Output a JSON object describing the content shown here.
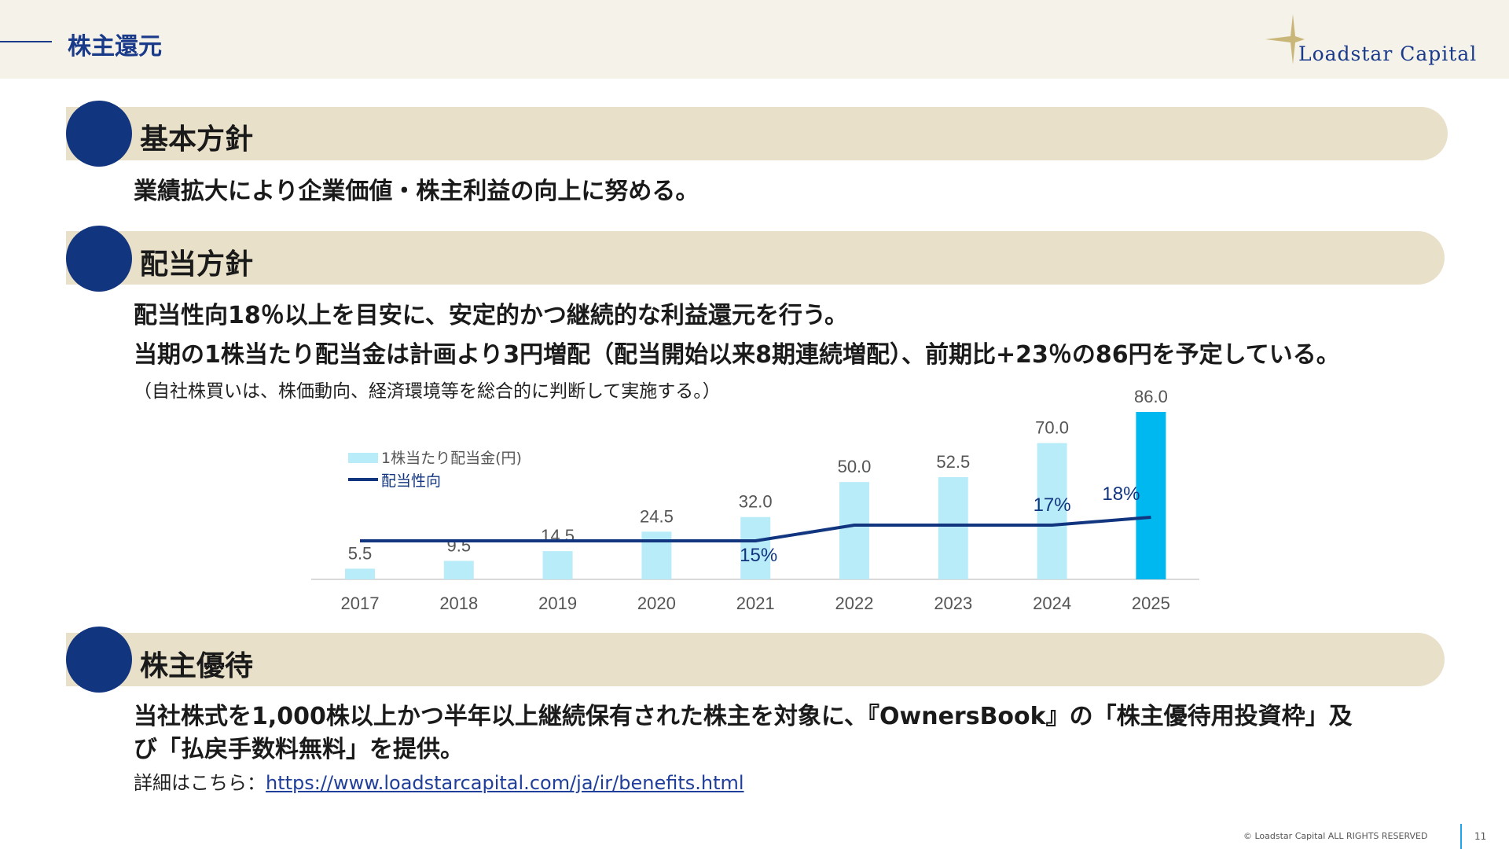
{
  "header": {
    "title": "株主還元",
    "logo_text": "Loadstar Capital"
  },
  "sections": {
    "basic": {
      "title": "基本方針",
      "line1": "業績拡大により企業価値・株主利益の向上に努める。"
    },
    "dividend": {
      "title": "配当方針",
      "line1": "配当性向18％以上を目安に、安定的かつ継続的な利益還元を行う。",
      "line2": "当期の1株当たり配当金は計画より3円増配（配当開始以来8期連続増配）、前期比+23％の86円を予定している。",
      "note": "（自社株買いは、株価動向、経済環境等を総合的に判断して実施する。）"
    },
    "benefits": {
      "title": "株主優待",
      "line1": "当社株式を1,000株以上かつ半年以上継続保有された株主を対象に、『OwnersBook』の「株主優待用投資枠」及",
      "line2": "び「払戻手数料無料」を提供。",
      "link_prefix": "詳細はこちら：",
      "link_text": "https://www.loadstarcapital.com/ja/ir/benefits.html"
    }
  },
  "chart_data": {
    "type": "bar",
    "categories": [
      "2017",
      "2018",
      "2019",
      "2020",
      "2021",
      "2022",
      "2023",
      "2024",
      "2025"
    ],
    "series": [
      {
        "name": "1株当たり配当金(円)",
        "type": "bar",
        "values": [
          5.5,
          9.5,
          14.5,
          24.5,
          32.0,
          50.0,
          52.5,
          70.0,
          86.0
        ],
        "labels": [
          "5.5",
          "9.5",
          "14.5",
          "24.5",
          "32.0",
          "50.0",
          "52.5",
          "70.0",
          "86.0"
        ],
        "color": "#b9ecf9",
        "highlight_color": "#00b8f0",
        "highlight_index": 8
      },
      {
        "name": "配当性向",
        "type": "line",
        "values": [
          15,
          15,
          15,
          15,
          15,
          17,
          17,
          17,
          18
        ],
        "point_labels": [
          {
            "index": 4,
            "text": "15%"
          },
          {
            "index": 7,
            "text": "17%"
          },
          {
            "index": 8,
            "text": "18%"
          }
        ],
        "color": "#12357f"
      }
    ],
    "legend_position": "top-left",
    "grid": false
  },
  "footer": {
    "copyright": "© Loadstar Capital ALL RIGHTS RESERVED",
    "page": "11"
  }
}
